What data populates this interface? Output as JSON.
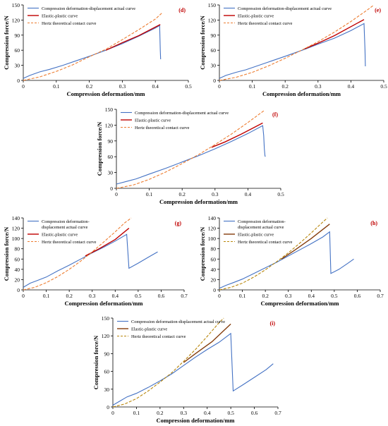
{
  "chart_data": [
    {
      "type": "line",
      "panel_label": "(d)",
      "xlabel": "Compression deformation/mm",
      "ylabel": "Compression force/N",
      "xlim": [
        0,
        0.5
      ],
      "ylim": [
        0,
        150
      ],
      "xticks": [
        0,
        0.1,
        0.2,
        0.3,
        0.4,
        0.5
      ],
      "xtick_labels": [
        "0",
        "0.1",
        "0.2",
        "0.3",
        "0.4",
        "0.5"
      ],
      "yticks": [
        0,
        30,
        60,
        90,
        120,
        150
      ],
      "ytick_labels": [
        "0",
        "30",
        "60",
        "90",
        "120",
        "150"
      ],
      "legend_position": "top-left",
      "series": [
        {
          "name": "Compression deformation-displacement actual curve",
          "color": "#4472c4",
          "dash": "solid",
          "points": [
            [
              0,
              4
            ],
            [
              0.02,
              10
            ],
            [
              0.05,
              17
            ],
            [
              0.08,
              22
            ],
            [
              0.12,
              30
            ],
            [
              0.16,
              39
            ],
            [
              0.2,
              48
            ],
            [
              0.25,
              60
            ],
            [
              0.3,
              73
            ],
            [
              0.35,
              88
            ],
            [
              0.4,
              104
            ],
            [
              0.413,
              109
            ],
            [
              0.415,
              60
            ],
            [
              0.416,
              42
            ]
          ]
        },
        {
          "name": "Elastic-plastic curve",
          "color": "#c00000",
          "dash": "solid",
          "points": [
            [
              0.25,
              60
            ],
            [
              0.3,
              75
            ],
            [
              0.35,
              89
            ],
            [
              0.415,
              111
            ]
          ]
        },
        {
          "name": "Hertz theoretical contact curve",
          "color": "#ed7d31",
          "dash": "dashed",
          "points": [
            [
              0,
              0
            ],
            [
              0.05,
              7
            ],
            [
              0.1,
              18
            ],
            [
              0.15,
              31
            ],
            [
              0.2,
              47
            ],
            [
              0.25,
              62
            ],
            [
              0.3,
              81
            ],
            [
              0.35,
              101
            ],
            [
              0.4,
              122
            ],
            [
              0.42,
              134
            ]
          ]
        }
      ]
    },
    {
      "type": "line",
      "panel_label": "(e)",
      "xlabel": "Compression deformation/mm",
      "ylabel": "Compression force/N",
      "xlim": [
        0,
        0.5
      ],
      "ylim": [
        0,
        150
      ],
      "xticks": [
        0,
        0.1,
        0.2,
        0.3,
        0.4,
        0.5
      ],
      "xtick_labels": [
        "0",
        "0.1",
        "0.2",
        "0.3",
        "0.4",
        "0.5"
      ],
      "yticks": [
        0,
        30,
        60,
        90,
        120,
        150
      ],
      "ytick_labels": [
        "0",
        "30",
        "60",
        "90",
        "120",
        "150"
      ],
      "legend_position": "top-left",
      "series": [
        {
          "name": "Compression deformation-displacement actual curve",
          "color": "#4472c4",
          "dash": "solid",
          "points": [
            [
              0,
              4
            ],
            [
              0.02,
              10
            ],
            [
              0.05,
              16
            ],
            [
              0.08,
              21
            ],
            [
              0.12,
              30
            ],
            [
              0.16,
              39
            ],
            [
              0.2,
              48
            ],
            [
              0.26,
              62
            ],
            [
              0.3,
              72
            ],
            [
              0.35,
              84
            ],
            [
              0.4,
              99
            ],
            [
              0.44,
              113
            ],
            [
              0.443,
              60
            ],
            [
              0.444,
              28
            ]
          ]
        },
        {
          "name": "Elastic-plastic curve",
          "color": "#c00000",
          "dash": "solid",
          "points": [
            [
              0.26,
              63
            ],
            [
              0.3,
              74
            ],
            [
              0.35,
              89
            ],
            [
              0.44,
              121
            ]
          ]
        },
        {
          "name": "Hertz theoretical contact curve",
          "color": "#ed7d31",
          "dash": "dashed",
          "points": [
            [
              0,
              0
            ],
            [
              0.05,
              6
            ],
            [
              0.1,
              16
            ],
            [
              0.15,
              29
            ],
            [
              0.2,
              44
            ],
            [
              0.25,
              60
            ],
            [
              0.3,
              77
            ],
            [
              0.35,
              96
            ],
            [
              0.4,
              117
            ],
            [
              0.45,
              140
            ],
            [
              0.47,
              150
            ]
          ]
        }
      ]
    },
    {
      "type": "line",
      "panel_label": "(f)",
      "xlabel": "Compression deformation/mm",
      "ylabel": "Compression force/N",
      "xlim": [
        0,
        0.5
      ],
      "ylim": [
        0,
        150
      ],
      "xticks": [
        0,
        0.1,
        0.2,
        0.3,
        0.4,
        0.5
      ],
      "xtick_labels": [
        "0",
        "0.1",
        "0.2",
        "0.3",
        "0.4",
        "0.5"
      ],
      "yticks": [
        0,
        30,
        60,
        90,
        120,
        150
      ],
      "ytick_labels": [
        "0",
        "30",
        "60",
        "90",
        "120",
        "150"
      ],
      "legend_position": "top-left",
      "series": [
        {
          "name": "Compression deformation-displacement actual curve",
          "color": "#4472c4",
          "dash": "solid",
          "points": [
            [
              0,
              8
            ],
            [
              0.03,
              13
            ],
            [
              0.06,
              18
            ],
            [
              0.1,
              27
            ],
            [
              0.15,
              38
            ],
            [
              0.2,
              50
            ],
            [
              0.25,
              62
            ],
            [
              0.3,
              75
            ],
            [
              0.35,
              89
            ],
            [
              0.4,
              104
            ],
            [
              0.445,
              119
            ],
            [
              0.448,
              100
            ],
            [
              0.45,
              75
            ],
            [
              0.452,
              62
            ],
            [
              0.453,
              60
            ]
          ]
        },
        {
          "name": "Elastic-plastic curve",
          "color": "#c00000",
          "dash": "solid",
          "points": [
            [
              0.29,
              78
            ],
            [
              0.33,
              88
            ],
            [
              0.38,
              103
            ],
            [
              0.445,
              124
            ]
          ]
        },
        {
          "name": "Hertz theoretical contact curve",
          "color": "#ed7d31",
          "dash": "dashed",
          "points": [
            [
              0,
              0
            ],
            [
              0.05,
              6
            ],
            [
              0.1,
              17
            ],
            [
              0.15,
              31
            ],
            [
              0.2,
              47
            ],
            [
              0.25,
              64
            ],
            [
              0.3,
              83
            ],
            [
              0.35,
              103
            ],
            [
              0.4,
              125
            ],
            [
              0.45,
              148
            ]
          ]
        }
      ]
    },
    {
      "type": "line",
      "panel_label": "(g)",
      "xlabel": "Compression deformation/mm",
      "ylabel": "Compression force/N",
      "xlim": [
        0,
        0.7
      ],
      "ylim": [
        0,
        140
      ],
      "xticks": [
        0,
        0.1,
        0.2,
        0.3,
        0.4,
        0.5,
        0.6,
        0.7
      ],
      "xtick_labels": [
        "0",
        "0.1",
        "0.2",
        "0.3",
        "0.4",
        "0.5",
        "0.6",
        "0.7"
      ],
      "yticks": [
        0,
        20,
        40,
        60,
        80,
        100,
        120,
        140
      ],
      "ytick_labels": [
        "0",
        "20",
        "40",
        "60",
        "80",
        "100",
        "120",
        "140"
      ],
      "legend_position": "top-left",
      "series": [
        {
          "name": "Compression deformation-displacement actual curve",
          "color": "#4472c4",
          "dash": "solid",
          "points": [
            [
              0,
              5
            ],
            [
              0.03,
              13
            ],
            [
              0.06,
              18
            ],
            [
              0.1,
              25
            ],
            [
              0.15,
              37
            ],
            [
              0.2,
              48
            ],
            [
              0.25,
              60
            ],
            [
              0.3,
              72
            ],
            [
              0.35,
              83
            ],
            [
              0.4,
              95
            ],
            [
              0.45,
              108
            ],
            [
              0.46,
              42
            ],
            [
              0.5,
              52
            ],
            [
              0.55,
              65
            ],
            [
              0.585,
              74
            ]
          ]
        },
        {
          "name": "Elastic-plastic curve",
          "color": "#c00000",
          "dash": "solid",
          "points": [
            [
              0.27,
              66
            ],
            [
              0.33,
              80
            ],
            [
              0.4,
              98
            ],
            [
              0.46,
              120
            ]
          ]
        },
        {
          "name": "Hertz theoretical contact curve",
          "color": "#ed7d31",
          "dash": "dashed",
          "points": [
            [
              0,
              0
            ],
            [
              0.05,
              5
            ],
            [
              0.1,
              14
            ],
            [
              0.15,
              26
            ],
            [
              0.2,
              40
            ],
            [
              0.25,
              56
            ],
            [
              0.3,
              74
            ],
            [
              0.35,
              93
            ],
            [
              0.4,
              113
            ],
            [
              0.44,
              130
            ],
            [
              0.47,
              140
            ]
          ]
        }
      ]
    },
    {
      "type": "line",
      "panel_label": "(h)",
      "xlabel": "Compression deformation/mm",
      "ylabel": "Compression force/N",
      "xlim": [
        0,
        0.7
      ],
      "ylim": [
        0,
        140
      ],
      "xticks": [
        0,
        0.1,
        0.2,
        0.3,
        0.4,
        0.5,
        0.6,
        0.7
      ],
      "xtick_labels": [
        "0",
        "0.1",
        "0.2",
        "0.3",
        "0.4",
        "0.5",
        "0.6",
        "0.7"
      ],
      "yticks": [
        0,
        20,
        40,
        60,
        80,
        100,
        120,
        140
      ],
      "ytick_labels": [
        "0",
        "20",
        "40",
        "60",
        "80",
        "100",
        "120",
        "140"
      ],
      "legend_position": "top-left",
      "series": [
        {
          "name": "Compression deformation-displacement actual curve",
          "color": "#4472c4",
          "dash": "solid",
          "points": [
            [
              0,
              3
            ],
            [
              0.03,
              9
            ],
            [
              0.06,
              14
            ],
            [
              0.1,
              21
            ],
            [
              0.15,
              32
            ],
            [
              0.2,
              43
            ],
            [
              0.25,
              54
            ],
            [
              0.3,
              66
            ],
            [
              0.35,
              78
            ],
            [
              0.4,
              90
            ],
            [
              0.45,
              103
            ],
            [
              0.48,
              113
            ],
            [
              0.485,
              32
            ],
            [
              0.52,
              40
            ],
            [
              0.56,
              52
            ],
            [
              0.585,
              60
            ]
          ]
        },
        {
          "name": "Elastic-plastic curve",
          "color": "#843c0c",
          "dash": "solid",
          "points": [
            [
              0.27,
              60
            ],
            [
              0.33,
              78
            ],
            [
              0.4,
              100
            ],
            [
              0.48,
              128
            ]
          ]
        },
        {
          "name": "Hertz theoretical contact curve",
          "color": "#b8860b",
          "dash": "dashed",
          "points": [
            [
              0,
              0
            ],
            [
              0.05,
              5
            ],
            [
              0.1,
              13
            ],
            [
              0.15,
              25
            ],
            [
              0.2,
              39
            ],
            [
              0.25,
              55
            ],
            [
              0.3,
              72
            ],
            [
              0.35,
              91
            ],
            [
              0.4,
              111
            ],
            [
              0.45,
              132
            ],
            [
              0.47,
              140
            ]
          ]
        }
      ]
    },
    {
      "type": "line",
      "panel_label": "(i)",
      "xlabel": "Compression deformation/mm",
      "ylabel": "Compression force/N",
      "xlim": [
        0,
        0.7
      ],
      "ylim": [
        0,
        150
      ],
      "xticks": [
        0,
        0.1,
        0.2,
        0.3,
        0.4,
        0.5,
        0.6,
        0.7
      ],
      "xtick_labels": [
        "0",
        "0.1",
        "0.2",
        "0.3",
        "0.4",
        "0.5",
        "0.6",
        "0.7"
      ],
      "yticks": [
        0,
        30,
        60,
        90,
        120,
        150
      ],
      "ytick_labels": [
        "0",
        "30",
        "60",
        "90",
        "120",
        "150"
      ],
      "legend_position": "top-left",
      "series": [
        {
          "name": "Compression deformation-displacement actual curve",
          "color": "#4472c4",
          "dash": "solid",
          "points": [
            [
              0,
              3
            ],
            [
              0.03,
              10
            ],
            [
              0.06,
              17
            ],
            [
              0.1,
              23
            ],
            [
              0.15,
              33
            ],
            [
              0.2,
              44
            ],
            [
              0.25,
              56
            ],
            [
              0.3,
              70
            ],
            [
              0.35,
              84
            ],
            [
              0.4,
              97
            ],
            [
              0.45,
              109
            ],
            [
              0.5,
              124
            ],
            [
              0.51,
              27
            ],
            [
              0.55,
              37
            ],
            [
              0.6,
              50
            ],
            [
              0.65,
              63
            ],
            [
              0.68,
              73
            ]
          ]
        },
        {
          "name": "Elastic-plastic curve",
          "color": "#843c0c",
          "dash": "solid",
          "points": [
            [
              0.3,
              75
            ],
            [
              0.35,
              90
            ],
            [
              0.42,
              110
            ],
            [
              0.5,
              140
            ]
          ]
        },
        {
          "name": "Hertz theoretical contact curve",
          "color": "#b8860b",
          "dash": "dashed",
          "points": [
            [
              0,
              0
            ],
            [
              0.05,
              5
            ],
            [
              0.1,
              14
            ],
            [
              0.15,
              27
            ],
            [
              0.2,
              42
            ],
            [
              0.25,
              58
            ],
            [
              0.3,
              77
            ],
            [
              0.35,
              97
            ],
            [
              0.4,
              119
            ],
            [
              0.45,
              142
            ],
            [
              0.47,
              150
            ]
          ]
        }
      ]
    }
  ]
}
